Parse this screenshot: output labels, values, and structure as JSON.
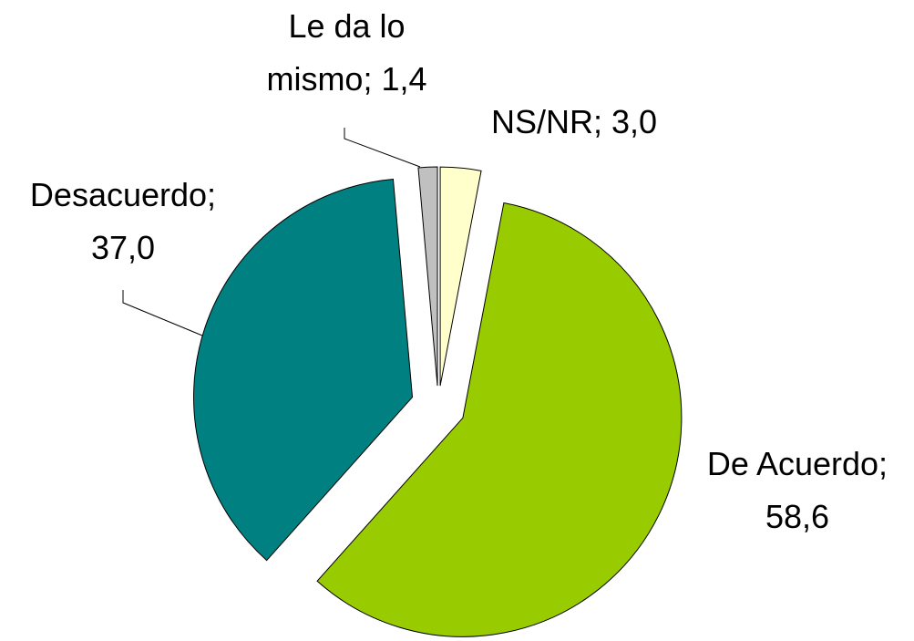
{
  "chart_data": {
    "type": "pie",
    "categories": [
      "NS/NR",
      "De Acuerdo",
      "Desacuerdo",
      "Le da lo mismo"
    ],
    "values": [
      3.0,
      58.6,
      37.0,
      1.4
    ],
    "value_labels": [
      "3,0",
      "58,6",
      "37,0",
      "1,4"
    ],
    "label_separator": ";",
    "colors": [
      "#ffffcc",
      "#99cc00",
      "#008080",
      "#c0c0c0"
    ]
  }
}
